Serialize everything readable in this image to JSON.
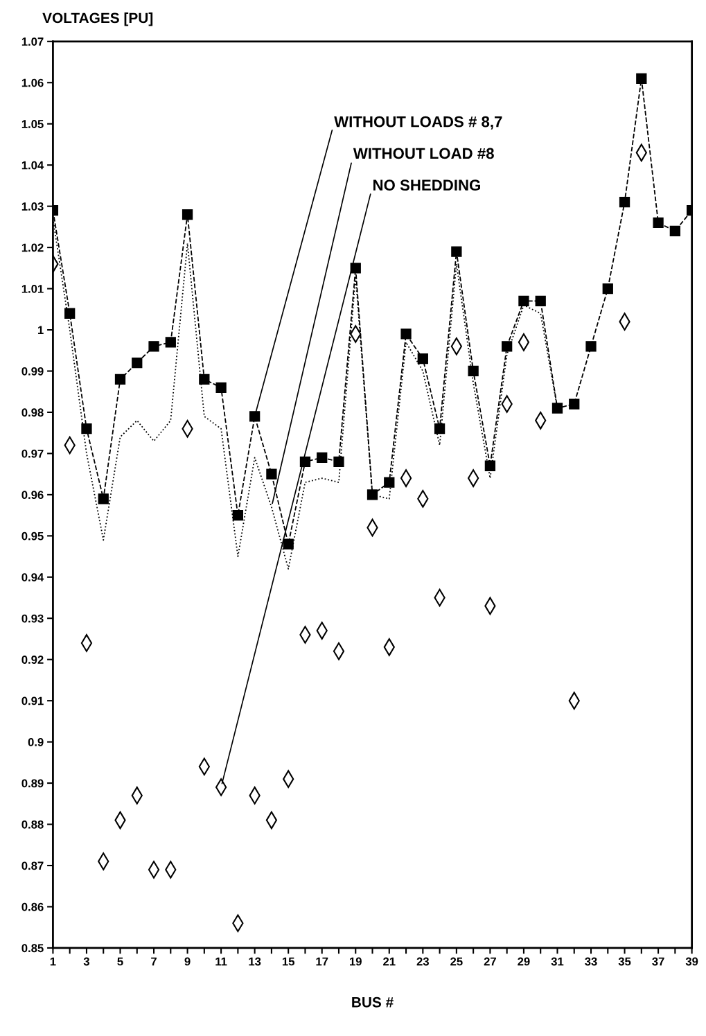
{
  "chart_data": {
    "type": "line",
    "ylabel": "VOLTAGES [PU]",
    "xlabel": "BUS #",
    "x": [
      1,
      2,
      3,
      4,
      5,
      6,
      7,
      8,
      9,
      10,
      11,
      12,
      13,
      14,
      15,
      16,
      17,
      18,
      19,
      20,
      21,
      22,
      23,
      24,
      25,
      26,
      27,
      28,
      29,
      30,
      31,
      32,
      33,
      34,
      35,
      36,
      37,
      38,
      39
    ],
    "series": [
      {
        "color": "#000000",
        "marker": "square",
        "line_style": "dashed",
        "values": [
          1.029,
          1.004,
          0.976,
          0.959,
          0.988,
          0.992,
          0.996,
          0.997,
          1.028,
          0.988,
          0.986,
          0.955,
          0.979,
          0.965,
          0.948,
          0.968,
          0.969,
          0.968,
          1.015,
          0.96,
          0.963,
          0.999,
          0.993,
          0.976,
          1.019,
          0.99,
          0.967,
          0.996,
          1.007,
          1.007,
          0.981,
          0.982,
          0.996,
          1.01,
          1.031,
          1.061,
          1.026,
          1.024,
          1.029
        ]
      },
      {
        "type": "line",
        "color": "#000000",
        "marker": "none",
        "line_style": "dotted",
        "values": [
          1.027,
          1.0,
          0.97,
          0.949,
          0.974,
          0.978,
          0.973,
          0.978,
          1.021,
          0.979,
          0.976,
          0.945,
          0.969,
          0.957,
          0.942,
          0.963,
          0.964,
          0.963,
          1.013,
          0.96,
          0.959,
          0.997,
          0.99,
          0.972,
          1.016,
          0.987,
          0.964,
          0.994,
          1.006,
          1.004,
          0.981,
          null,
          null,
          null,
          null,
          null,
          null,
          null,
          null
        ]
      },
      {
        "type": "scatter",
        "color": "#000000",
        "marker": "diamond",
        "values": [
          1.016,
          0.972,
          0.924,
          0.871,
          0.881,
          0.887,
          0.869,
          0.869,
          0.976,
          0.894,
          0.889,
          0.856,
          0.887,
          0.881,
          0.891,
          0.926,
          0.927,
          0.922,
          0.999,
          0.952,
          0.923,
          0.964,
          0.959,
          0.935,
          0.996,
          0.964,
          0.933,
          0.982,
          0.997,
          0.978,
          null,
          0.91,
          null,
          null,
          1.002,
          1.043,
          null,
          null,
          null
        ]
      }
    ],
    "xlim": [
      1,
      39
    ],
    "xticks": [
      1,
      {
        "value": 2,
        "label": null
      },
      3,
      {
        "value": 4,
        "label": null
      },
      5,
      {
        "value": 6,
        "label": null
      },
      7,
      {
        "value": 8,
        "label": null
      },
      9,
      {
        "value": 10,
        "label": null
      },
      11,
      {
        "value": 12,
        "label": null
      },
      13,
      {
        "value": 14,
        "label": null
      },
      15,
      {
        "value": 16,
        "label": null
      },
      17,
      {
        "value": 18,
        "label": null
      },
      19,
      {
        "value": 20,
        "label": null
      },
      21,
      {
        "value": 22,
        "label": null
      },
      23,
      {
        "value": 24,
        "label": null
      },
      25,
      {
        "value": 26,
        "label": null
      },
      27,
      {
        "value": 28,
        "label": null
      },
      29,
      {
        "value": 30,
        "label": null
      },
      31,
      {
        "value": 32,
        "label": null
      },
      33,
      {
        "value": 34,
        "label": null
      },
      35,
      {
        "value": 36,
        "label": null
      },
      37,
      {
        "value": 38,
        "label": null
      },
      39
    ],
    "ylim": [
      0.85,
      1.07
    ],
    "yticks": [
      0.85,
      0.86,
      0.87,
      0.88,
      0.89,
      0.9,
      0.91,
      0.92,
      0.93,
      0.94,
      0.95,
      0.96,
      0.97,
      0.98,
      0.99,
      1,
      1.01,
      1.02,
      1.03,
      1.04,
      1.05,
      1.06,
      1.07
    ],
    "annotations": [
      {
        "text": "WITHOUT LOADS # 8,7",
        "x": 13,
        "y": 0.979
      },
      {
        "text": "WITHOUT LOAD #8",
        "x": 14,
        "y": 0.957
      },
      {
        "text": "NO SHEDDING",
        "x": 11,
        "y": 0.889
      }
    ],
    "grid": false
  }
}
